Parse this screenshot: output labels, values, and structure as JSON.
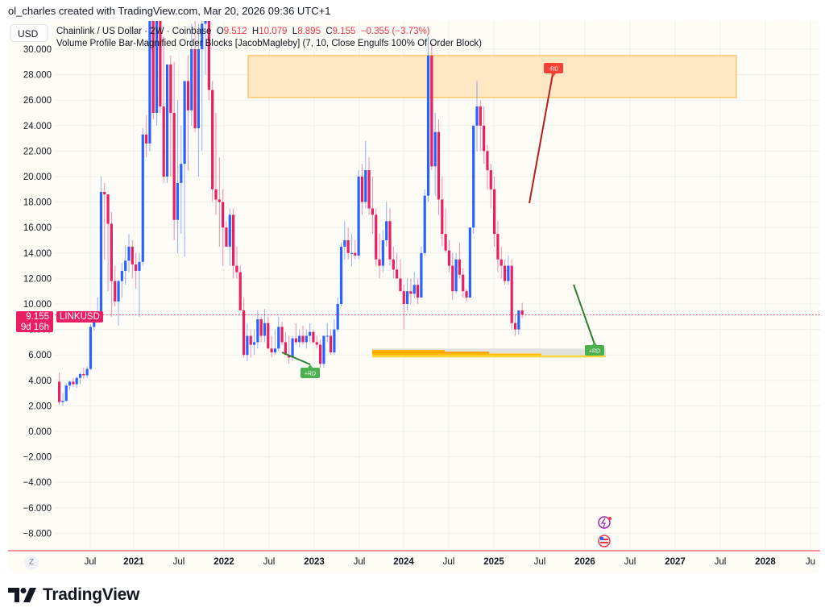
{
  "credit": "ol_charles created with TradingView.com, Mar 20, 2026 09:36 UTC+1",
  "currency_button": "USD",
  "legend": {
    "symbol": "Chainlink / US Dollar · 2W · Coinbase",
    "open_label": "O",
    "open": "9.512",
    "high_label": "H",
    "high": "10.079",
    "low_label": "L",
    "low": "8.895",
    "close_label": "C",
    "close": "9.155",
    "change": "−0.355 (−3.73%)",
    "indicator": "Volume Profile Bar-Magnified Order Blocks [JacobMagleby] (7, 10, Close Engulfs 100% Of Order Block)"
  },
  "price_badge": {
    "price": "9.155",
    "countdown": "9d 16h",
    "symbol": "LINKUSD"
  },
  "time_axis_reset": "Z",
  "footer": {
    "brand": "TradingView"
  },
  "colors": {
    "up": "#2962ff",
    "down": "#e91e63",
    "accent": "#f23645",
    "zone_fill": "#ffe0b2",
    "zone_border": "#ffc15a",
    "bull_label": "#4caf50",
    "bear_label": "#f44336"
  },
  "chart_data": {
    "type": "candlestick",
    "title": "Chainlink / US Dollar · 2W · Coinbase",
    "xlabel": "",
    "ylabel": "USD",
    "ylim": [
      -9,
      31
    ],
    "y_ticks": [
      "30.000",
      "28.000",
      "26.000",
      "24.000",
      "22.000",
      "20.000",
      "18.000",
      "16.000",
      "14.000",
      "12.000",
      "10.000",
      "8.000",
      "6.000",
      "4.000",
      "2.000",
      "0.000",
      "−2.000",
      "−4.000",
      "−6.000",
      "−8.000"
    ],
    "x_ticks": [
      {
        "label": "Jul",
        "bold": false
      },
      {
        "label": "2021",
        "bold": true
      },
      {
        "label": "Jul",
        "bold": false
      },
      {
        "label": "2022",
        "bold": true
      },
      {
        "label": "Jul",
        "bold": false
      },
      {
        "label": "2023",
        "bold": true
      },
      {
        "label": "Jul",
        "bold": false
      },
      {
        "label": "2024",
        "bold": true
      },
      {
        "label": "Jul",
        "bold": false
      },
      {
        "label": "2025",
        "bold": true
      },
      {
        "label": "Jul",
        "bold": false
      },
      {
        "label": "2026",
        "bold": true
      },
      {
        "label": "Jul",
        "bold": false
      },
      {
        "label": "2027",
        "bold": true
      },
      {
        "label": "Jul",
        "bold": false
      },
      {
        "label": "2028",
        "bold": true
      },
      {
        "label": "Ju",
        "bold": false
      }
    ],
    "grid": true,
    "last_price": 9.155,
    "ohlc_2w": [
      [
        3.9,
        4.6,
        2.1,
        2.3
      ],
      [
        2.3,
        3.0,
        2.0,
        2.4
      ],
      [
        2.4,
        3.8,
        2.3,
        3.6
      ],
      [
        3.6,
        4.0,
        3.3,
        3.9
      ],
      [
        3.9,
        4.2,
        3.5,
        3.7
      ],
      [
        3.7,
        4.3,
        3.4,
        4.2
      ],
      [
        4.2,
        4.6,
        3.7,
        4.5
      ],
      [
        4.5,
        5.0,
        4.1,
        4.4
      ],
      [
        4.4,
        5.1,
        4.2,
        4.9
      ],
      [
        4.9,
        8.4,
        4.8,
        8.2
      ],
      [
        8.2,
        9.4,
        7.9,
        9.0
      ],
      [
        9.0,
        10.5,
        8.6,
        9.2
      ],
      [
        9.2,
        20.0,
        9.0,
        18.8
      ],
      [
        18.8,
        19.5,
        13.5,
        18.6
      ],
      [
        18.6,
        15.6,
        11.0,
        16.3
      ],
      [
        16.3,
        17.2,
        9.0,
        11.8
      ],
      [
        11.8,
        13.0,
        9.8,
        10.2
      ],
      [
        10.2,
        11.9,
        8.3,
        11.8
      ],
      [
        11.8,
        13.2,
        10.5,
        12.6
      ],
      [
        12.6,
        14.6,
        11.5,
        13.4
      ],
      [
        13.4,
        15.5,
        12.5,
        14.5
      ],
      [
        14.5,
        15.0,
        12.0,
        13.1
      ],
      [
        13.1,
        14.0,
        11.2,
        12.6
      ],
      [
        12.6,
        14.0,
        9.0,
        13.3
      ],
      [
        13.3,
        23.8,
        13.0,
        23.3
      ],
      [
        23.3,
        24.8,
        21.5,
        22.6
      ],
      [
        22.6,
        30.5,
        22.0,
        33.0
      ],
      [
        33.0,
        36.0,
        24.5,
        25.0
      ],
      [
        25.0,
        36.0,
        24.0,
        35.0
      ],
      [
        35.0,
        38.0,
        25.0,
        25.5
      ],
      [
        25.5,
        31.0,
        19.5,
        20.0
      ],
      [
        20.0,
        28.0,
        19.5,
        28.8
      ],
      [
        28.8,
        29.5,
        20.0,
        25.0
      ],
      [
        25.0,
        29.0,
        15.0,
        16.6
      ],
      [
        16.6,
        26.0,
        14.0,
        19.5
      ],
      [
        19.5,
        24.0,
        15.5,
        21.0
      ],
      [
        21.0,
        26.0,
        13.7,
        27.5
      ],
      [
        27.5,
        29.5,
        20.5,
        25.2
      ],
      [
        25.2,
        32.0,
        24.0,
        30.0
      ],
      [
        30.0,
        35.0,
        23.5,
        23.8
      ],
      [
        23.8,
        32.0,
        20.0,
        30.0
      ],
      [
        30.0,
        33.0,
        22.0,
        32.0
      ],
      [
        32.0,
        36.0,
        28.0,
        34.0
      ],
      [
        34.0,
        35.0,
        26.0,
        26.8
      ],
      [
        26.8,
        27.5,
        18.0,
        19.0
      ],
      [
        19.0,
        25.0,
        17.0,
        18.2
      ],
      [
        18.2,
        21.5,
        14.5,
        18.0
      ],
      [
        18.0,
        19.0,
        13.0,
        16.0
      ],
      [
        16.0,
        16.5,
        14.5,
        14.5
      ],
      [
        14.5,
        17.5,
        13.0,
        17.0
      ],
      [
        17.0,
        17.5,
        12.0,
        13.0
      ],
      [
        13.0,
        14.5,
        12.0,
        12.5
      ],
      [
        12.5,
        13.0,
        10.0,
        9.5
      ],
      [
        9.5,
        10.5,
        5.8,
        6.0
      ],
      [
        6.0,
        8.5,
        5.5,
        7.5
      ],
      [
        7.5,
        8.0,
        5.8,
        6.8
      ],
      [
        6.8,
        8.0,
        6.0,
        7.0
      ],
      [
        7.0,
        9.5,
        6.5,
        8.8
      ],
      [
        8.8,
        9.0,
        7.0,
        7.5
      ],
      [
        7.5,
        9.6,
        7.0,
        8.5
      ],
      [
        8.5,
        9.0,
        6.5,
        6.5
      ],
      [
        6.5,
        7.5,
        5.8,
        6.2
      ],
      [
        6.2,
        8.0,
        6.0,
        6.5
      ],
      [
        6.5,
        9.0,
        6.3,
        8.2
      ],
      [
        8.2,
        8.6,
        6.8,
        7.0
      ],
      [
        7.0,
        7.8,
        6.0,
        6.0
      ],
      [
        6.0,
        7.5,
        5.3,
        5.8
      ],
      [
        5.8,
        7.5,
        5.5,
        7.3
      ],
      [
        7.3,
        8.5,
        6.8,
        7.0
      ],
      [
        7.0,
        8.0,
        6.6,
        7.5
      ],
      [
        7.5,
        8.3,
        6.8,
        7.0
      ],
      [
        7.0,
        8.0,
        6.5,
        7.5
      ],
      [
        7.5,
        8.5,
        7.0,
        7.8
      ],
      [
        7.8,
        8.0,
        6.9,
        7.0
      ],
      [
        7.0,
        7.5,
        6.5,
        6.8
      ],
      [
        6.8,
        7.2,
        5.0,
        5.3
      ],
      [
        5.3,
        7.5,
        5.0,
        7.5
      ],
      [
        7.5,
        8.5,
        7.0,
        7.5
      ],
      [
        7.5,
        8.0,
        6.0,
        6.2
      ],
      [
        6.2,
        8.8,
        6.0,
        8.0
      ],
      [
        8.0,
        10.5,
        7.8,
        10.0
      ],
      [
        10.0,
        14.8,
        9.8,
        14.5
      ],
      [
        14.5,
        16.5,
        13.5,
        15.0
      ],
      [
        15.0,
        16.0,
        13.5,
        14.0
      ],
      [
        14.0,
        15.5,
        13.0,
        14.0
      ],
      [
        14.0,
        15.0,
        13.5,
        13.8
      ],
      [
        13.8,
        20.5,
        13.5,
        20.0
      ],
      [
        20.0,
        21.0,
        17.0,
        18.0
      ],
      [
        18.0,
        22.8,
        17.5,
        20.5
      ],
      [
        20.5,
        21.5,
        17.0,
        17.5
      ],
      [
        17.5,
        20.0,
        15.5,
        17.0
      ],
      [
        17.0,
        17.5,
        13.0,
        13.5
      ],
      [
        13.5,
        15.5,
        12.0,
        13.0
      ],
      [
        13.0,
        15.8,
        12.5,
        15.0
      ],
      [
        15.0,
        18.0,
        14.5,
        16.5
      ],
      [
        16.5,
        17.5,
        13.0,
        13.5
      ],
      [
        13.5,
        14.5,
        12.0,
        12.7
      ],
      [
        12.7,
        14.0,
        12.0,
        12.0
      ],
      [
        12.0,
        13.5,
        11.0,
        11.0
      ],
      [
        11.0,
        11.5,
        8.0,
        10.0
      ],
      [
        10.0,
        12.0,
        9.5,
        11.0
      ],
      [
        11.0,
        12.0,
        10.0,
        10.8
      ],
      [
        10.8,
        12.5,
        10.5,
        11.5
      ],
      [
        11.5,
        12.0,
        10.0,
        10.5
      ],
      [
        10.5,
        14.5,
        10.5,
        14.0
      ],
      [
        14.0,
        19.0,
        13.8,
        18.5
      ],
      [
        18.5,
        31.0,
        18.0,
        29.5
      ],
      [
        29.5,
        30.5,
        20.5,
        20.8
      ],
      [
        20.8,
        25.0,
        18.5,
        23.5
      ],
      [
        23.5,
        24.5,
        17.0,
        18.2
      ],
      [
        18.2,
        20.0,
        14.5,
        15.5
      ],
      [
        15.5,
        17.5,
        14.0,
        14.2
      ],
      [
        14.2,
        15.0,
        12.5,
        13.0
      ],
      [
        13.0,
        14.0,
        10.3,
        11.0
      ],
      [
        11.0,
        14.0,
        10.8,
        13.5
      ],
      [
        13.5,
        14.8,
        12.0,
        12.3
      ],
      [
        12.3,
        12.8,
        10.5,
        11.0
      ],
      [
        11.0,
        11.2,
        10.2,
        10.5
      ],
      [
        10.5,
        16.0,
        10.5,
        16.0
      ],
      [
        16.0,
        24.0,
        15.5,
        24.0
      ],
      [
        24.0,
        27.5,
        22.0,
        25.5
      ],
      [
        25.5,
        26.0,
        22.0,
        24.0
      ],
      [
        24.0,
        25.5,
        21.0,
        22.0
      ],
      [
        22.0,
        22.5,
        19.0,
        20.5
      ],
      [
        20.5,
        21.0,
        17.5,
        19.0
      ],
      [
        19.0,
        20.0,
        14.5,
        15.5
      ],
      [
        15.5,
        16.5,
        12.5,
        13.5
      ],
      [
        13.5,
        14.5,
        12.0,
        13.0
      ],
      [
        13.0,
        13.5,
        11.5,
        11.8
      ],
      [
        11.8,
        13.8,
        11.5,
        13.0
      ],
      [
        13.0,
        13.5,
        8.0,
        8.5
      ],
      [
        8.5,
        9.2,
        7.5,
        8.0
      ],
      [
        8.0,
        9.5,
        7.6,
        9.5
      ],
      [
        9.5,
        10.1,
        8.9,
        9.155
      ]
    ],
    "annotations": [
      {
        "type": "label",
        "text": "+RD",
        "color": "#4caf50"
      },
      {
        "type": "label",
        "text": "-RD",
        "color": "#f44336"
      },
      {
        "type": "label",
        "text": "+RD",
        "color": "#4caf50"
      },
      {
        "type": "zone",
        "name": "bearish order block",
        "from": 26.2,
        "to": 29.5
      },
      {
        "type": "zone",
        "name": "bullish volume profile order block",
        "from": 5.8,
        "to": 6.5
      }
    ]
  }
}
